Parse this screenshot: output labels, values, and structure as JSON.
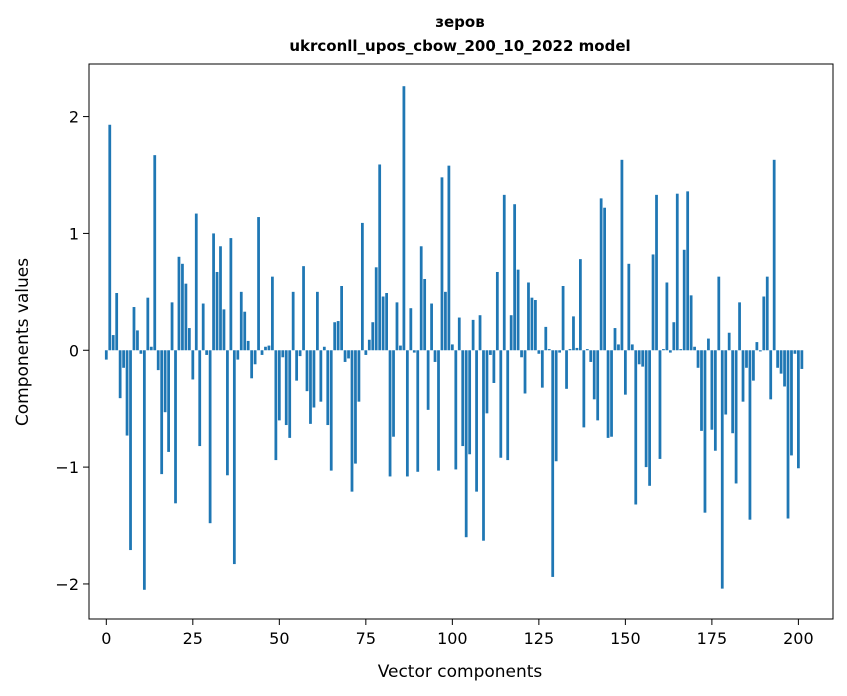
{
  "chart_data": {
    "type": "bar",
    "title_line1": "зеров",
    "title_line2": "ukrconll_upos_cbow_200_10_2022 model",
    "xlabel": "Vector components",
    "ylabel": "Components values",
    "xlim": [
      -5,
      210
    ],
    "ylim": [
      -2.3,
      2.45
    ],
    "xticks": [
      0,
      25,
      50,
      75,
      100,
      125,
      150,
      175,
      200
    ],
    "yticks": [
      -2,
      -1,
      0,
      1,
      2
    ],
    "xtick_labels": [
      "0",
      "25",
      "50",
      "75",
      "100",
      "125",
      "150",
      "175",
      "200"
    ],
    "ytick_labels": [
      "−2",
      "−1",
      "0",
      "1",
      "2"
    ],
    "grid": false,
    "bar_color": "#1f77b4",
    "values": [
      -0.08,
      1.93,
      0.13,
      0.49,
      -0.41,
      -0.15,
      -0.73,
      -1.71,
      0.37,
      0.17,
      -0.03,
      -2.05,
      0.45,
      0.03,
      1.67,
      -0.17,
      -1.06,
      -0.53,
      -0.87,
      0.41,
      -1.31,
      0.8,
      0.74,
      0.57,
      0.19,
      -0.25,
      1.17,
      -0.82,
      0.4,
      -0.04,
      -1.48,
      1.0,
      0.67,
      0.89,
      0.35,
      -1.07,
      0.96,
      -1.83,
      -0.08,
      0.5,
      0.33,
      0.08,
      -0.24,
      -0.12,
      1.14,
      -0.04,
      0.03,
      0.04,
      0.63,
      -0.94,
      -0.6,
      -0.06,
      -0.64,
      -0.75,
      0.5,
      -0.26,
      -0.05,
      0.72,
      -0.35,
      -0.63,
      -0.49,
      0.5,
      -0.44,
      0.03,
      -0.64,
      -1.03,
      0.24,
      0.25,
      0.55,
      -0.1,
      -0.07,
      -1.21,
      -0.97,
      -0.44,
      1.09,
      -0.04,
      0.09,
      0.24,
      0.71,
      1.59,
      0.46,
      0.49,
      -1.08,
      -0.74,
      0.41,
      0.04,
      2.26,
      -1.08,
      0.36,
      -0.02,
      -1.04,
      0.89,
      0.61,
      -0.51,
      0.4,
      -0.1,
      -1.03,
      1.48,
      0.5,
      1.58,
      0.05,
      -1.02,
      0.28,
      -0.82,
      -1.6,
      -0.89,
      0.26,
      -1.21,
      0.3,
      -1.63,
      -0.54,
      -0.04,
      -0.28,
      0.67,
      -0.92,
      1.33,
      -0.94,
      0.3,
      1.25,
      0.69,
      -0.06,
      -0.37,
      0.58,
      0.45,
      0.43,
      -0.03,
      -0.32,
      0.2,
      0.01,
      -1.94,
      -0.95,
      -0.02,
      0.55,
      -0.33,
      0.01,
      0.29,
      0.02,
      0.78,
      -0.66,
      0.01,
      -0.1,
      -0.42,
      -0.6,
      1.3,
      1.22,
      -0.75,
      -0.74,
      0.19,
      0.05,
      1.63,
      -0.38,
      0.74,
      0.05,
      -1.32,
      -0.12,
      -0.14,
      -1.0,
      -1.16,
      0.82,
      1.33,
      -0.93,
      0.01,
      0.58,
      -0.02,
      0.24,
      1.34,
      0.01,
      0.86,
      1.36,
      0.47,
      0.03,
      -0.15,
      -0.69,
      -1.39,
      0.1,
      -0.68,
      -0.86,
      0.63,
      -2.04,
      -0.55,
      0.15,
      -0.71,
      -1.14,
      0.41,
      -0.44,
      -0.15,
      -1.45,
      -0.26,
      0.07,
      -0.01,
      0.46,
      0.63,
      -0.42,
      1.63,
      -0.15,
      -0.2,
      -0.31,
      -1.44,
      -0.9,
      -0.03,
      -1.01,
      -0.16
    ]
  }
}
